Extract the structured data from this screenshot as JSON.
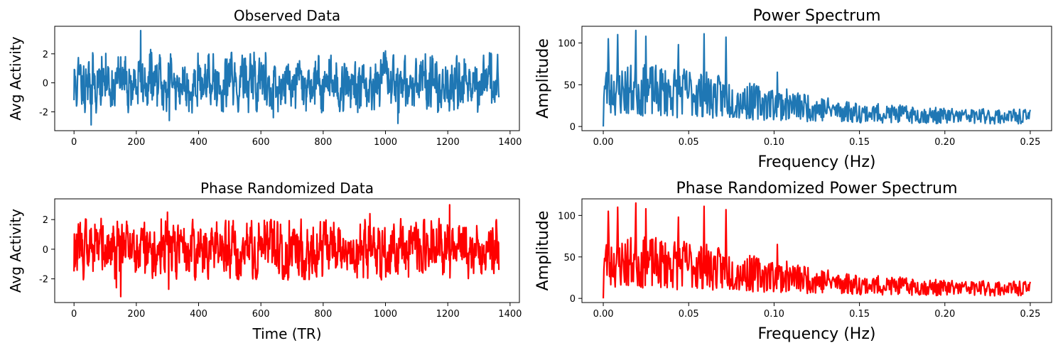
{
  "chart_data": [
    {
      "type": "line",
      "title": "Observed Data",
      "xlabel": "",
      "ylabel": "Avg Activity",
      "xlim": [
        -62,
        1430
      ],
      "ylim": [
        -3.3,
        3.9
      ],
      "xticks": [
        0,
        200,
        400,
        600,
        800,
        1000,
        1200,
        1400
      ],
      "yticks": [
        -2,
        0,
        2
      ],
      "grid": false,
      "series": [
        {
          "color": "#1f77b4",
          "style": "noise",
          "n": 1365,
          "seed": 11,
          "std": 0.95,
          "mean": 0.0,
          "peaks": [
            {
              "x": 0,
              "y": -1.2
            },
            {
              "x": 55,
              "y": -2.9
            },
            {
              "x": 214,
              "y": 3.6
            },
            {
              "x": 246,
              "y": 2.3
            },
            {
              "x": 306,
              "y": -2.6
            },
            {
              "x": 640,
              "y": -2.4
            },
            {
              "x": 1000,
              "y": 2.2
            },
            {
              "x": 1040,
              "y": -2.8
            },
            {
              "x": 1365,
              "y": -1.0
            }
          ]
        }
      ]
    },
    {
      "type": "line",
      "title": "Power Spectrum",
      "xlabel": "Frequency (Hz)",
      "ylabel": "Amplitude",
      "xlim": [
        -0.0125,
        0.2625
      ],
      "ylim": [
        -5,
        120
      ],
      "xticks": [
        0.0,
        0.05,
        0.1,
        0.15,
        0.2,
        0.25
      ],
      "xtick_labels": [
        "0.00",
        "0.05",
        "0.10",
        "0.15",
        "0.20",
        "0.25"
      ],
      "yticks": [
        0,
        50,
        100
      ],
      "grid": false,
      "series": [
        {
          "color": "#1f77b4",
          "style": "spectrum",
          "n": 683,
          "seed": 23,
          "xmax": 0.25,
          "envelope": [
            [
              0.0,
              45
            ],
            [
              0.05,
              42
            ],
            [
              0.08,
              32
            ],
            [
              0.1,
              28
            ],
            [
              0.15,
              17
            ],
            [
              0.2,
              13
            ],
            [
              0.25,
              12
            ]
          ],
          "peaks": [
            {
              "x": 0.0,
              "y": 0
            },
            {
              "x": 0.003,
              "y": 105
            },
            {
              "x": 0.0085,
              "y": 110
            },
            {
              "x": 0.019,
              "y": 115
            },
            {
              "x": 0.025,
              "y": 108
            },
            {
              "x": 0.044,
              "y": 98
            },
            {
              "x": 0.059,
              "y": 111
            },
            {
              "x": 0.072,
              "y": 107
            },
            {
              "x": 0.102,
              "y": 65
            },
            {
              "x": 0.25,
              "y": 20
            }
          ]
        }
      ]
    },
    {
      "type": "line",
      "title": "Phase Randomized Data",
      "xlabel": "Time (TR)",
      "ylabel": "Avg Activity",
      "xlim": [
        -62,
        1430
      ],
      "ylim": [
        -3.6,
        3.4
      ],
      "xticks": [
        0,
        200,
        400,
        600,
        800,
        1000,
        1200,
        1400
      ],
      "yticks": [
        -2,
        0,
        2
      ],
      "grid": false,
      "series": [
        {
          "color": "#ff0000",
          "style": "noise",
          "n": 1365,
          "seed": 37,
          "std": 0.95,
          "mean": 0.0,
          "peaks": [
            {
              "x": 0,
              "y": -1.5
            },
            {
              "x": 136,
              "y": -2.6
            },
            {
              "x": 150,
              "y": -3.2
            },
            {
              "x": 304,
              "y": -2.7
            },
            {
              "x": 300,
              "y": 2.5
            },
            {
              "x": 950,
              "y": 2.4
            },
            {
              "x": 1206,
              "y": 3.0
            },
            {
              "x": 1365,
              "y": -1.4
            }
          ]
        }
      ]
    },
    {
      "type": "line",
      "title": "Phase Randomized Power Spectrum",
      "xlabel": "Frequency (Hz)",
      "ylabel": "Amplitude",
      "xlim": [
        -0.0125,
        0.2625
      ],
      "ylim": [
        -5,
        120
      ],
      "xticks": [
        0.0,
        0.05,
        0.1,
        0.15,
        0.2,
        0.25
      ],
      "xtick_labels": [
        "0.00",
        "0.05",
        "0.10",
        "0.15",
        "0.20",
        "0.25"
      ],
      "yticks": [
        0,
        50,
        100
      ],
      "grid": false,
      "series": [
        {
          "color": "#ff0000",
          "style": "spectrum",
          "n": 683,
          "seed": 23,
          "xmax": 0.25,
          "envelope": [
            [
              0.0,
              45
            ],
            [
              0.05,
              42
            ],
            [
              0.08,
              32
            ],
            [
              0.1,
              28
            ],
            [
              0.15,
              17
            ],
            [
              0.2,
              13
            ],
            [
              0.25,
              12
            ]
          ],
          "peaks": [
            {
              "x": 0.0,
              "y": 0
            },
            {
              "x": 0.003,
              "y": 105
            },
            {
              "x": 0.0085,
              "y": 110
            },
            {
              "x": 0.019,
              "y": 115
            },
            {
              "x": 0.025,
              "y": 108
            },
            {
              "x": 0.044,
              "y": 98
            },
            {
              "x": 0.059,
              "y": 111
            },
            {
              "x": 0.072,
              "y": 107
            },
            {
              "x": 0.102,
              "y": 65
            },
            {
              "x": 0.25,
              "y": 20
            }
          ]
        }
      ]
    }
  ]
}
